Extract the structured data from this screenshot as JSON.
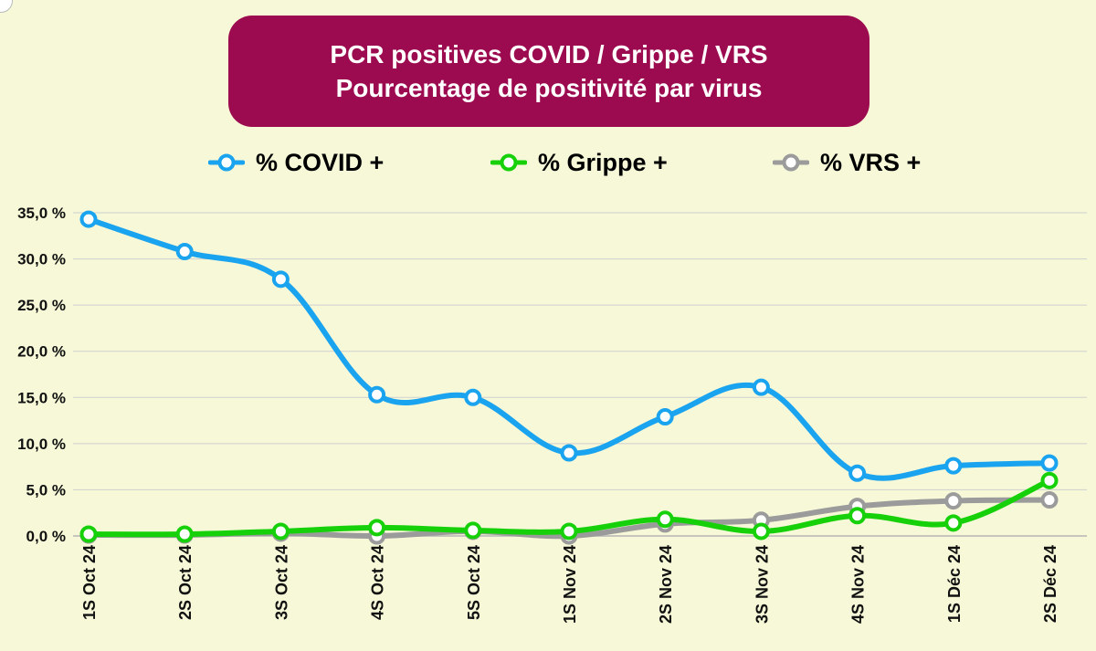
{
  "header": {
    "title_line1": "PCR positives COVID / Grippe / VRS",
    "title_line2": "Pourcentage de positivité par virus"
  },
  "legend": [
    {
      "label": "% COVID +",
      "color": "#1aa3ef"
    },
    {
      "label": "% Grippe +",
      "color": "#16d10a"
    },
    {
      "label": "% VRS +",
      "color": "#9b9b9b"
    }
  ],
  "chart_data": {
    "type": "line",
    "title": "PCR positives COVID / Grippe / VRS — Pourcentage de positivité par virus",
    "xlabel": "",
    "ylabel": "",
    "categories": [
      "1S Oct 24",
      "2S Oct 24",
      "3S Oct 24",
      "4S Oct 24",
      "5S Oct 24",
      "1S Nov 24",
      "2S Nov 24",
      "3S Nov 24",
      "4S Nov 24",
      "1S Déc 24",
      "2S Déc 24"
    ],
    "y_ticks": [
      "0,0 %",
      "5,0 %",
      "10,0 %",
      "15,0 %",
      "20,0 %",
      "25,0 %",
      "30,0 %",
      "35,0 %"
    ],
    "ylim": [
      0,
      35
    ],
    "grid": true,
    "legend_position": "top-center",
    "series": [
      {
        "name": "% COVID +",
        "color": "#1aa3ef",
        "values": [
          34.3,
          30.8,
          27.8,
          15.3,
          15.0,
          9.0,
          12.9,
          16.1,
          6.8,
          7.6,
          7.9
        ]
      },
      {
        "name": "% Grippe +",
        "color": "#16d10a",
        "values": [
          0.2,
          0.2,
          0.5,
          0.9,
          0.6,
          0.5,
          1.8,
          0.5,
          2.2,
          1.4,
          6.0
        ]
      },
      {
        "name": "% VRS +",
        "color": "#9b9b9b",
        "values": [
          0.1,
          0.1,
          0.3,
          0.0,
          0.5,
          0.0,
          1.3,
          1.7,
          3.2,
          3.8,
          3.9
        ]
      }
    ]
  }
}
